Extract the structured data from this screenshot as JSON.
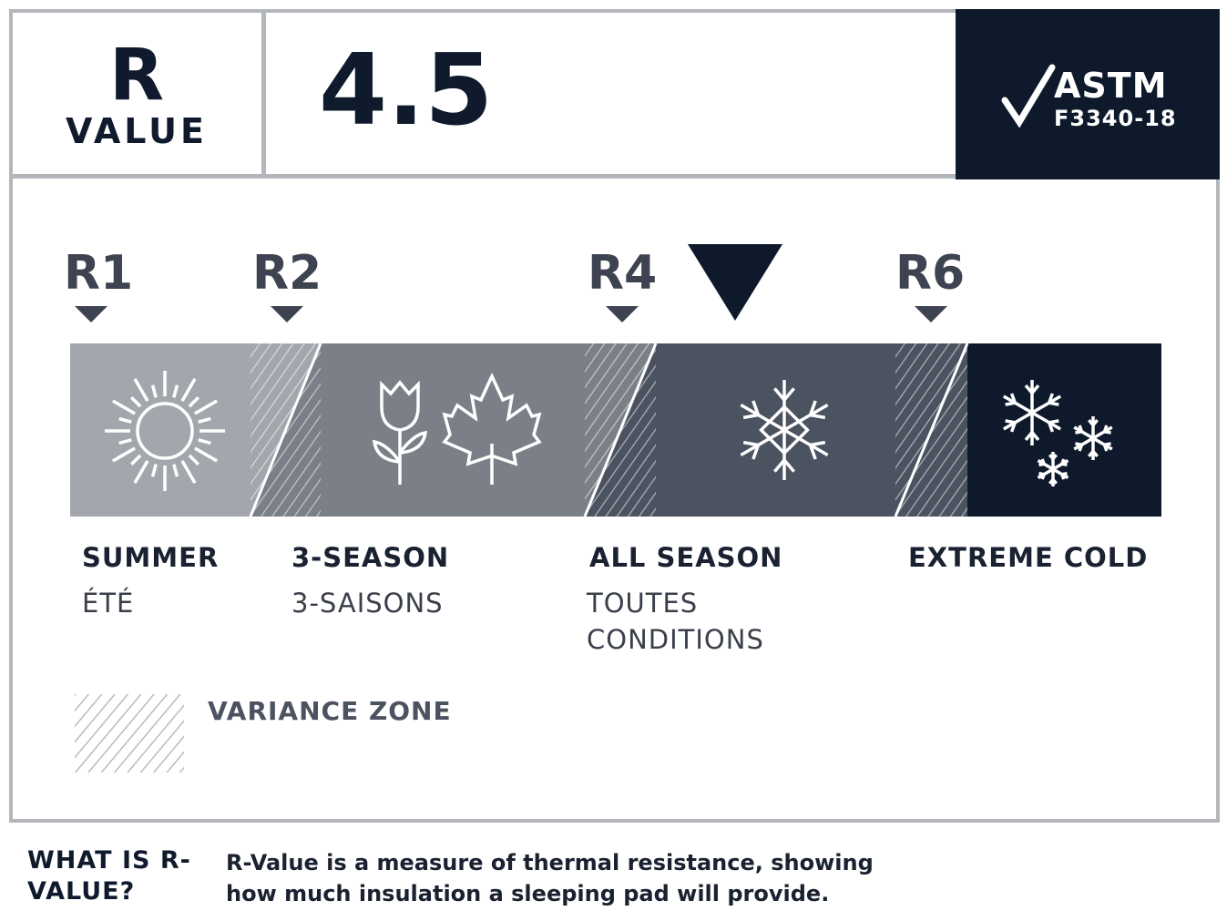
{
  "header": {
    "r_letter": "R",
    "value_label": "VALUE",
    "r_value": "4.5",
    "badge": {
      "title": "ASTM",
      "code": "F3340-18",
      "icon": "checkmark-icon"
    }
  },
  "scale": {
    "markers": [
      {
        "label": "R1",
        "value": 1
      },
      {
        "label": "R2",
        "value": 2
      },
      {
        "label": "R4",
        "value": 4
      },
      {
        "label": "R6",
        "value": 6
      }
    ],
    "current_value": 4.5,
    "segments": [
      {
        "label": "SUMMER",
        "sub": "ÉTÉ",
        "color": "#a3a7ad",
        "icon": "sun-icon"
      },
      {
        "label": "3-SEASON",
        "sub": "3-SAISONS",
        "color": "#7a7f88",
        "icon": "tulip-maple-leaf-icon"
      },
      {
        "label": "ALL SEASON",
        "sub": "TOUTES CONDITIONS",
        "color": "#4b5260",
        "icon": "snowflake-icon"
      },
      {
        "label": "EXTREME COLD",
        "sub": "",
        "color": "#0e1a2c",
        "icon": "snowflakes-icon"
      }
    ]
  },
  "legend": {
    "variance_label": "VARIANCE ZONE"
  },
  "footer": {
    "question": "WHAT IS R-VALUE?",
    "answer": "R-Value is a measure of thermal resistance, showing how much insulation a sleeping pad will provide."
  }
}
